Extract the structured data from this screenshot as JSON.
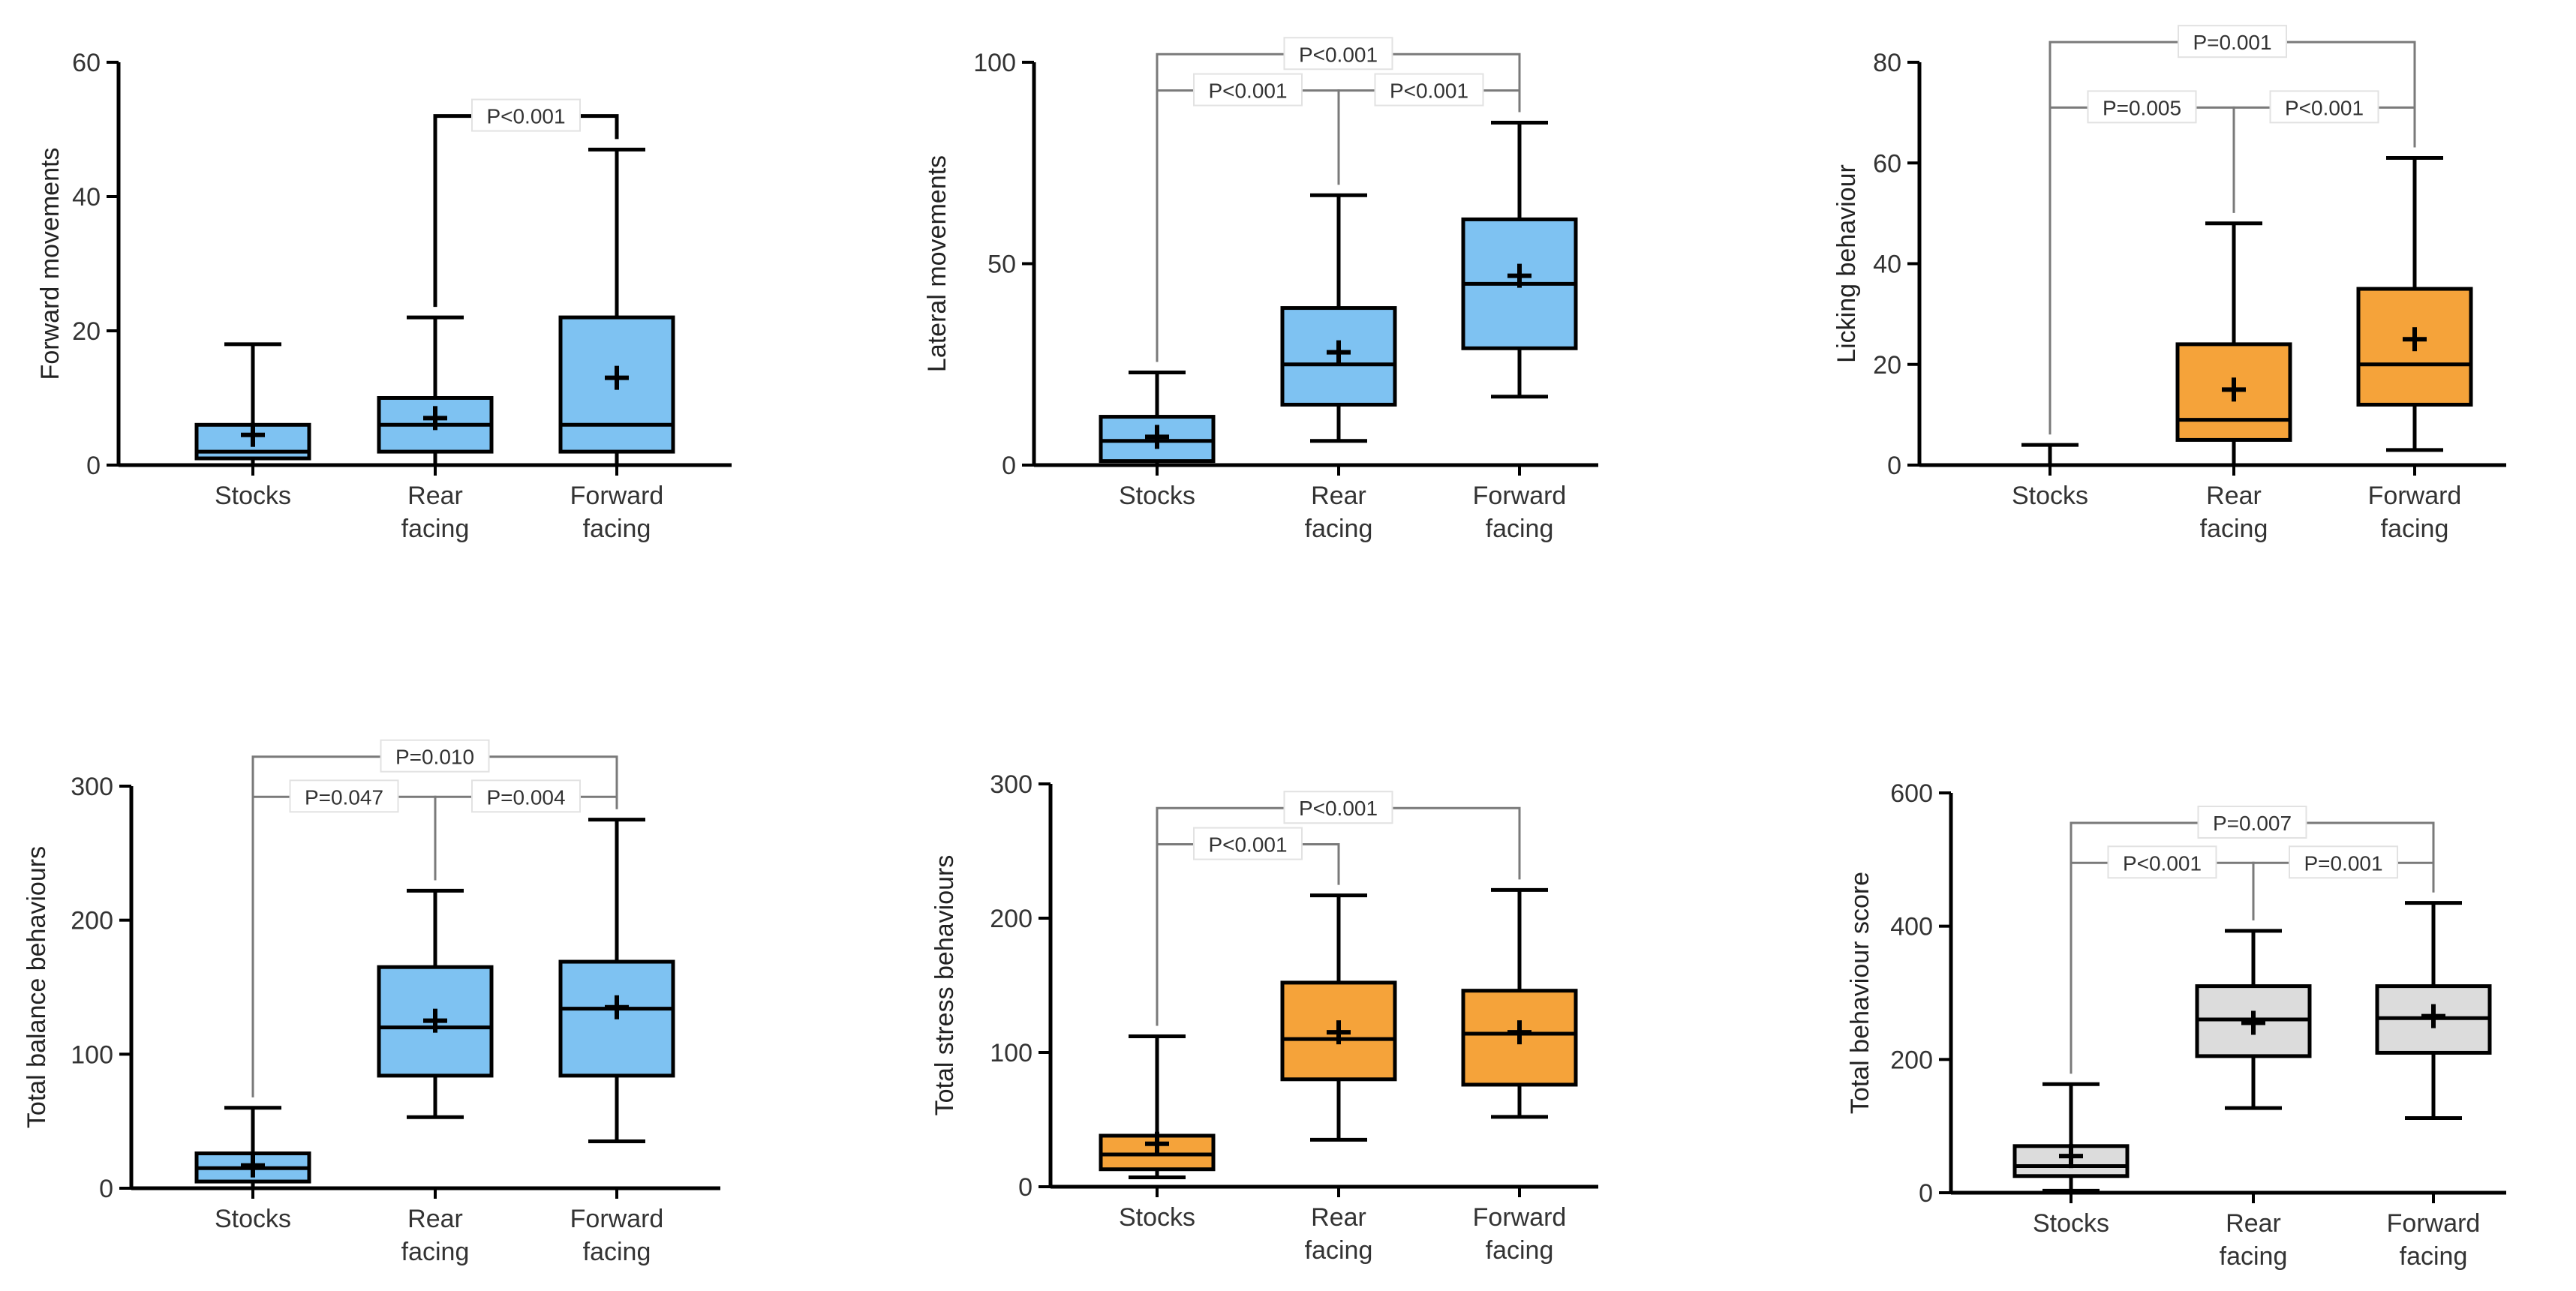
{
  "figure": {
    "panels": 6,
    "colors": {
      "blue": "#7ec2f2",
      "orange": "#f5a33a",
      "grey": "#dcdcdc",
      "stroke": "#000000"
    }
  },
  "chart_data": [
    {
      "type": "box",
      "ylabel": "Forward movements",
      "ylim": [
        0,
        60
      ],
      "yticks": [
        "0",
        "20",
        "40",
        "60"
      ],
      "yticks_values": [
        0,
        20,
        40,
        60
      ],
      "fill_color": "#7ec2f2",
      "categories": [
        [
          "Stocks"
        ],
        [
          "Rear",
          "facing"
        ],
        [
          "Forward",
          "facing"
        ]
      ],
      "boxes": [
        {
          "min": 0,
          "q1": 1,
          "median": 2,
          "q3": 6,
          "max": 18,
          "mean": 4.5
        },
        {
          "min": 0,
          "q1": 2,
          "median": 6,
          "q3": 10,
          "max": 22,
          "mean": 7
        },
        {
          "min": 0,
          "q1": 2,
          "median": 6,
          "q3": 22,
          "max": 47,
          "mean": 13
        }
      ],
      "comparisons": [
        {
          "from": 1,
          "to": 2,
          "label": "P<0.001",
          "y": 52
        }
      ]
    },
    {
      "type": "box",
      "ylabel": "Lateral movements",
      "ylim": [
        0,
        100
      ],
      "yticks": [
        "0",
        "50",
        "100"
      ],
      "yticks_values": [
        0,
        50,
        100
      ],
      "fill_color": "#7ec2f2",
      "categories": [
        [
          "Stocks"
        ],
        [
          "Rear",
          "facing"
        ],
        [
          "Forward",
          "facing"
        ]
      ],
      "boxes": [
        {
          "min": 0,
          "q1": 1,
          "median": 6,
          "q3": 12,
          "max": 23,
          "mean": 7
        },
        {
          "min": 6,
          "q1": 15,
          "median": 25,
          "q3": 39,
          "max": 67,
          "mean": 28
        },
        {
          "min": 17,
          "q1": 29,
          "median": 45,
          "q3": 61,
          "max": 85,
          "mean": 47
        }
      ],
      "comparisons": [
        {
          "from": 0,
          "to": 1,
          "label": "P<0.001",
          "y": 93
        },
        {
          "from": 1,
          "to": 2,
          "label": "P<0.001",
          "y": 93
        },
        {
          "from": 0,
          "to": 2,
          "label": "P<0.001",
          "y": 102
        }
      ]
    },
    {
      "type": "box",
      "ylabel": "Licking behaviour",
      "ylim": [
        0,
        80
      ],
      "yticks": [
        "0",
        "20",
        "40",
        "60",
        "80"
      ],
      "yticks_values": [
        0,
        20,
        40,
        60,
        80
      ],
      "fill_color": "#f5a33a",
      "categories": [
        [
          "Stocks"
        ],
        [
          "Rear",
          "facing"
        ],
        [
          "Forward",
          "facing"
        ]
      ],
      "boxes": [
        {
          "min": 0,
          "q1": 0,
          "median": 0,
          "q3": 0,
          "max": 4,
          "mean": 0
        },
        {
          "min": 0,
          "q1": 5,
          "median": 9,
          "q3": 24,
          "max": 48,
          "mean": 15
        },
        {
          "min": 3,
          "q1": 12,
          "median": 20,
          "q3": 35,
          "max": 61,
          "mean": 25
        }
      ],
      "comparisons": [
        {
          "from": 0,
          "to": 1,
          "label": "P=0.005",
          "y": 71
        },
        {
          "from": 1,
          "to": 2,
          "label": "P<0.001",
          "y": 71
        },
        {
          "from": 0,
          "to": 2,
          "label": "P=0.001",
          "y": 84
        }
      ]
    },
    {
      "type": "box",
      "ylabel": "Total balance behaviours",
      "ylim": [
        0,
        300
      ],
      "yticks": [
        "0",
        "100",
        "200",
        "300"
      ],
      "yticks_values": [
        0,
        100,
        200,
        300
      ],
      "fill_color": "#7ec2f2",
      "categories": [
        [
          "Stocks"
        ],
        [
          "Rear",
          "facing"
        ],
        [
          "Forward",
          "facing"
        ]
      ],
      "boxes": [
        {
          "min": 0,
          "q1": 5,
          "median": 15,
          "q3": 26,
          "max": 60,
          "mean": 17
        },
        {
          "min": 53,
          "q1": 84,
          "median": 120,
          "q3": 165,
          "max": 222,
          "mean": 125
        },
        {
          "min": 35,
          "q1": 84,
          "median": 134,
          "q3": 169,
          "max": 275,
          "mean": 135
        }
      ],
      "comparisons": [
        {
          "from": 0,
          "to": 1,
          "label": "P=0.047",
          "y": 292
        },
        {
          "from": 1,
          "to": 2,
          "label": "P=0.004",
          "y": 292
        },
        {
          "from": 0,
          "to": 2,
          "label": "P=0.010",
          "y": 322
        }
      ]
    },
    {
      "type": "box",
      "ylabel": "Total stress behaviours",
      "ylim": [
        0,
        300
      ],
      "yticks": [
        "0",
        "100",
        "200",
        "300"
      ],
      "yticks_values": [
        0,
        100,
        200,
        300
      ],
      "fill_color": "#f5a33a",
      "categories": [
        [
          "Stocks"
        ],
        [
          "Rear",
          "facing"
        ],
        [
          "Forward",
          "facing"
        ]
      ],
      "boxes": [
        {
          "min": 7,
          "q1": 13,
          "median": 24,
          "q3": 38,
          "max": 112,
          "mean": 32
        },
        {
          "min": 35,
          "q1": 80,
          "median": 110,
          "q3": 152,
          "max": 217,
          "mean": 115
        },
        {
          "min": 52,
          "q1": 76,
          "median": 114,
          "q3": 146,
          "max": 221,
          "mean": 115
        }
      ],
      "comparisons": [
        {
          "from": 0,
          "to": 1,
          "label": "P<0.001",
          "y": 255
        },
        {
          "from": 0,
          "to": 2,
          "label": "P<0.001",
          "y": 282
        }
      ]
    },
    {
      "type": "box",
      "ylabel": "Total behaviour score",
      "ylim": [
        0,
        600
      ],
      "yticks": [
        "0",
        "200",
        "400",
        "600"
      ],
      "yticks_values": [
        0,
        200,
        400,
        600
      ],
      "fill_color": "#dcdcdc",
      "categories": [
        [
          "Stocks"
        ],
        [
          "Rear",
          "facing"
        ],
        [
          "Forward",
          "facing"
        ]
      ],
      "boxes": [
        {
          "min": 3,
          "q1": 25,
          "median": 40,
          "q3": 70,
          "max": 163,
          "mean": 55
        },
        {
          "min": 127,
          "q1": 205,
          "median": 260,
          "q3": 310,
          "max": 393,
          "mean": 255
        },
        {
          "min": 112,
          "q1": 210,
          "median": 262,
          "q3": 310,
          "max": 435,
          "mean": 265
        }
      ],
      "comparisons": [
        {
          "from": 0,
          "to": 1,
          "label": "P<0.001",
          "y": 495
        },
        {
          "from": 1,
          "to": 2,
          "label": "P=0.001",
          "y": 495
        },
        {
          "from": 0,
          "to": 2,
          "label": "P=0.007",
          "y": 555
        }
      ]
    }
  ]
}
